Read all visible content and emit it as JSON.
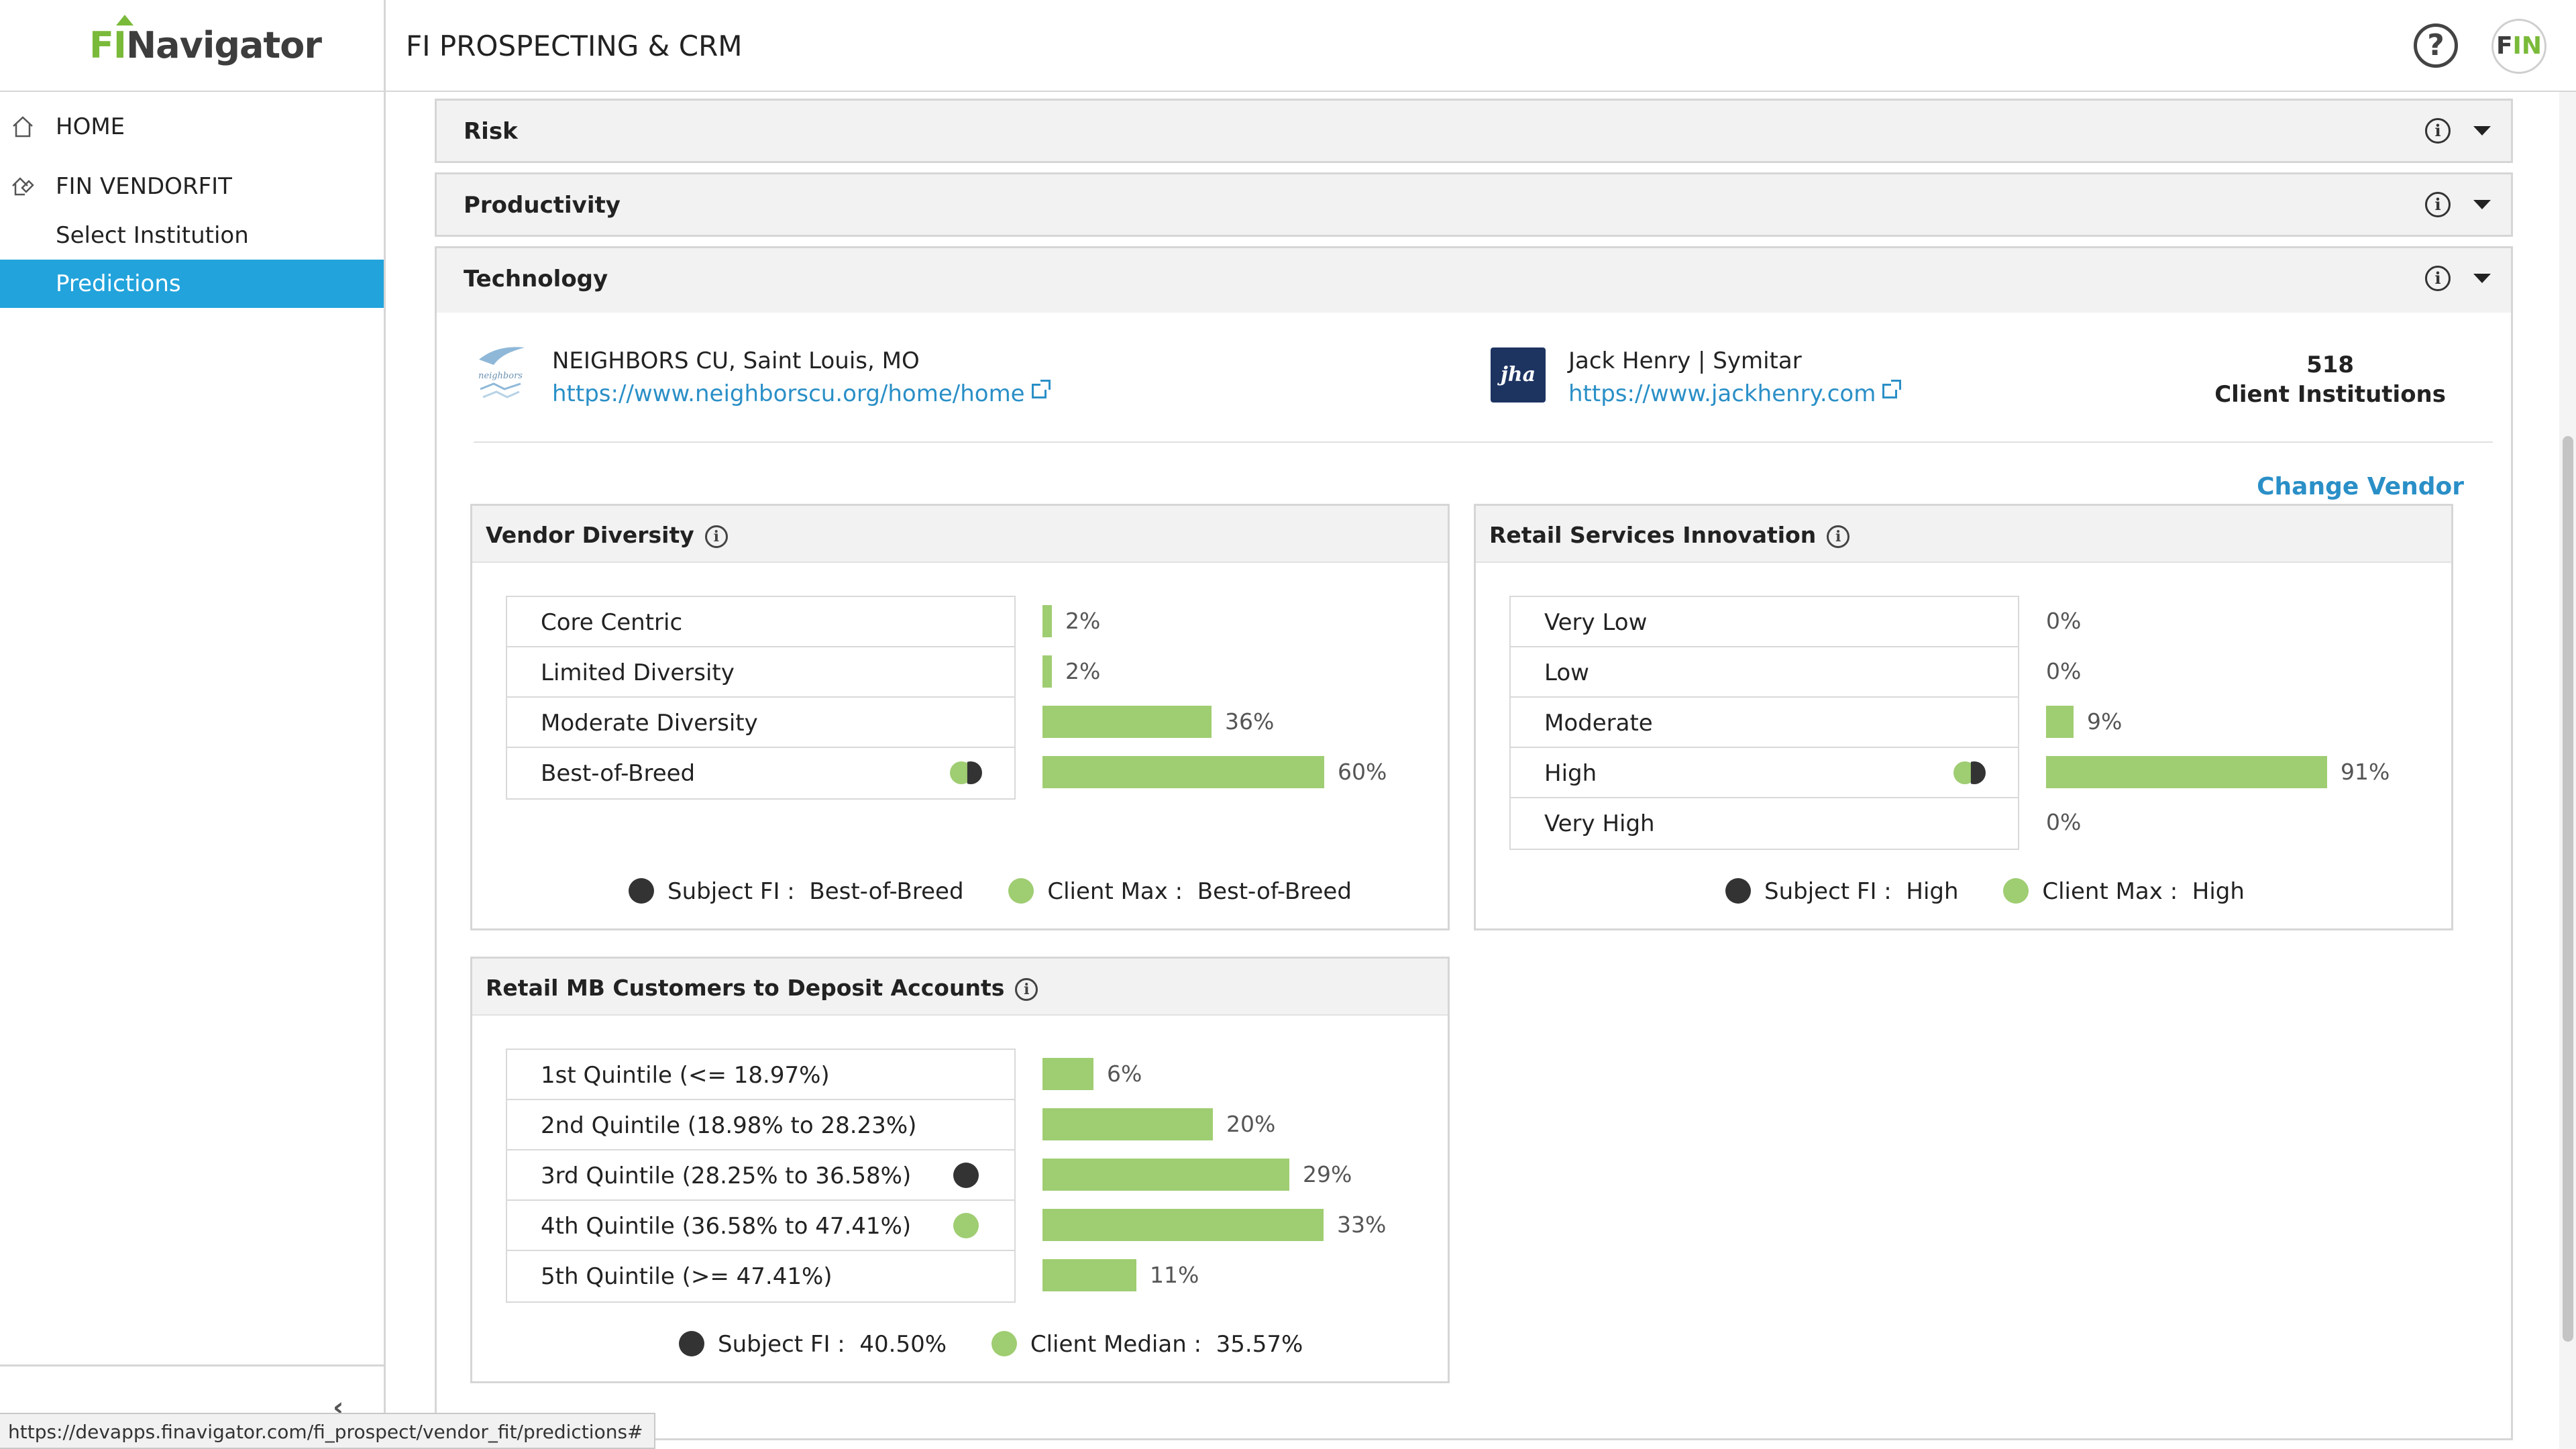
{
  "brand": {
    "fi": "FI",
    "name": "Navigator"
  },
  "header": {
    "title": "FI PROSPECTING & CRM",
    "avatar_text_1": "F",
    "avatar_text_2": "IN"
  },
  "sidebar": {
    "home": "HOME",
    "vendorfit": "FIN VENDORFIT",
    "select": "Select Institution",
    "predictions": "Predictions"
  },
  "status_url": "https://devapps.finavigator.com/fi_prospect/vendor_fit/predictions#",
  "accordions": {
    "risk": "Risk",
    "productivity": "Productivity",
    "technology": "Technology"
  },
  "institution": {
    "name": "NEIGHBORS CU, Saint Louis, MO",
    "url": "https://www.neighborscu.org/home/home",
    "logo_text": "neighbors"
  },
  "vendor": {
    "name": "Jack Henry | Symitar",
    "url": "https://www.jackhenry.com",
    "logo_text": "jha",
    "client_count": "518",
    "client_label": "Client Institutions",
    "change_label": "Change Vendor"
  },
  "vendor_diversity": {
    "title": "Vendor Diversity",
    "rows": [
      {
        "label": "Core Centric",
        "pct": "2%",
        "value": 2
      },
      {
        "label": "Limited Diversity",
        "pct": "2%",
        "value": 2
      },
      {
        "label": "Moderate Diversity",
        "pct": "36%",
        "value": 36
      },
      {
        "label": "Best-of-Breed",
        "pct": "60%",
        "value": 60
      }
    ],
    "legend": {
      "subject_label": "Subject FI :",
      "subject_value": "Best-of-Breed",
      "client_label": "Client Max :",
      "client_value": "Best-of-Breed"
    }
  },
  "retail_innovation": {
    "title": "Retail Services Innovation",
    "rows": [
      {
        "label": "Very Low",
        "pct": "0%",
        "value": 0
      },
      {
        "label": "Low",
        "pct": "0%",
        "value": 0
      },
      {
        "label": "Moderate",
        "pct": "9%",
        "value": 9
      },
      {
        "label": "High",
        "pct": "91%",
        "value": 91
      },
      {
        "label": "Very High",
        "pct": "0%",
        "value": 0
      }
    ],
    "legend": {
      "subject_label": "Subject FI :",
      "subject_value": "High",
      "client_label": "Client Max :",
      "client_value": "High"
    }
  },
  "mb_customers": {
    "title": "Retail MB Customers to Deposit Accounts",
    "rows": [
      {
        "label": "1st Quintile (<= 18.97%)",
        "pct": "6%",
        "value": 6
      },
      {
        "label": "2nd Quintile (18.98% to 28.23%)",
        "pct": "20%",
        "value": 20
      },
      {
        "label": "3rd Quintile (28.25% to 36.58%)",
        "pct": "29%",
        "value": 29
      },
      {
        "label": "4th Quintile (36.58% to 47.41%)",
        "pct": "33%",
        "value": 33
      },
      {
        "label": "5th Quintile (>= 47.41%)",
        "pct": "11%",
        "value": 11
      }
    ],
    "legend": {
      "subject_label": "Subject FI :",
      "subject_value": "40.50%",
      "client_label": "Client Median :",
      "client_value": "35.57%"
    }
  },
  "colors": {
    "accent": "#22a3dc",
    "bar": "#9fcd72",
    "subject": "#333333",
    "link": "#2a8fc7"
  }
}
